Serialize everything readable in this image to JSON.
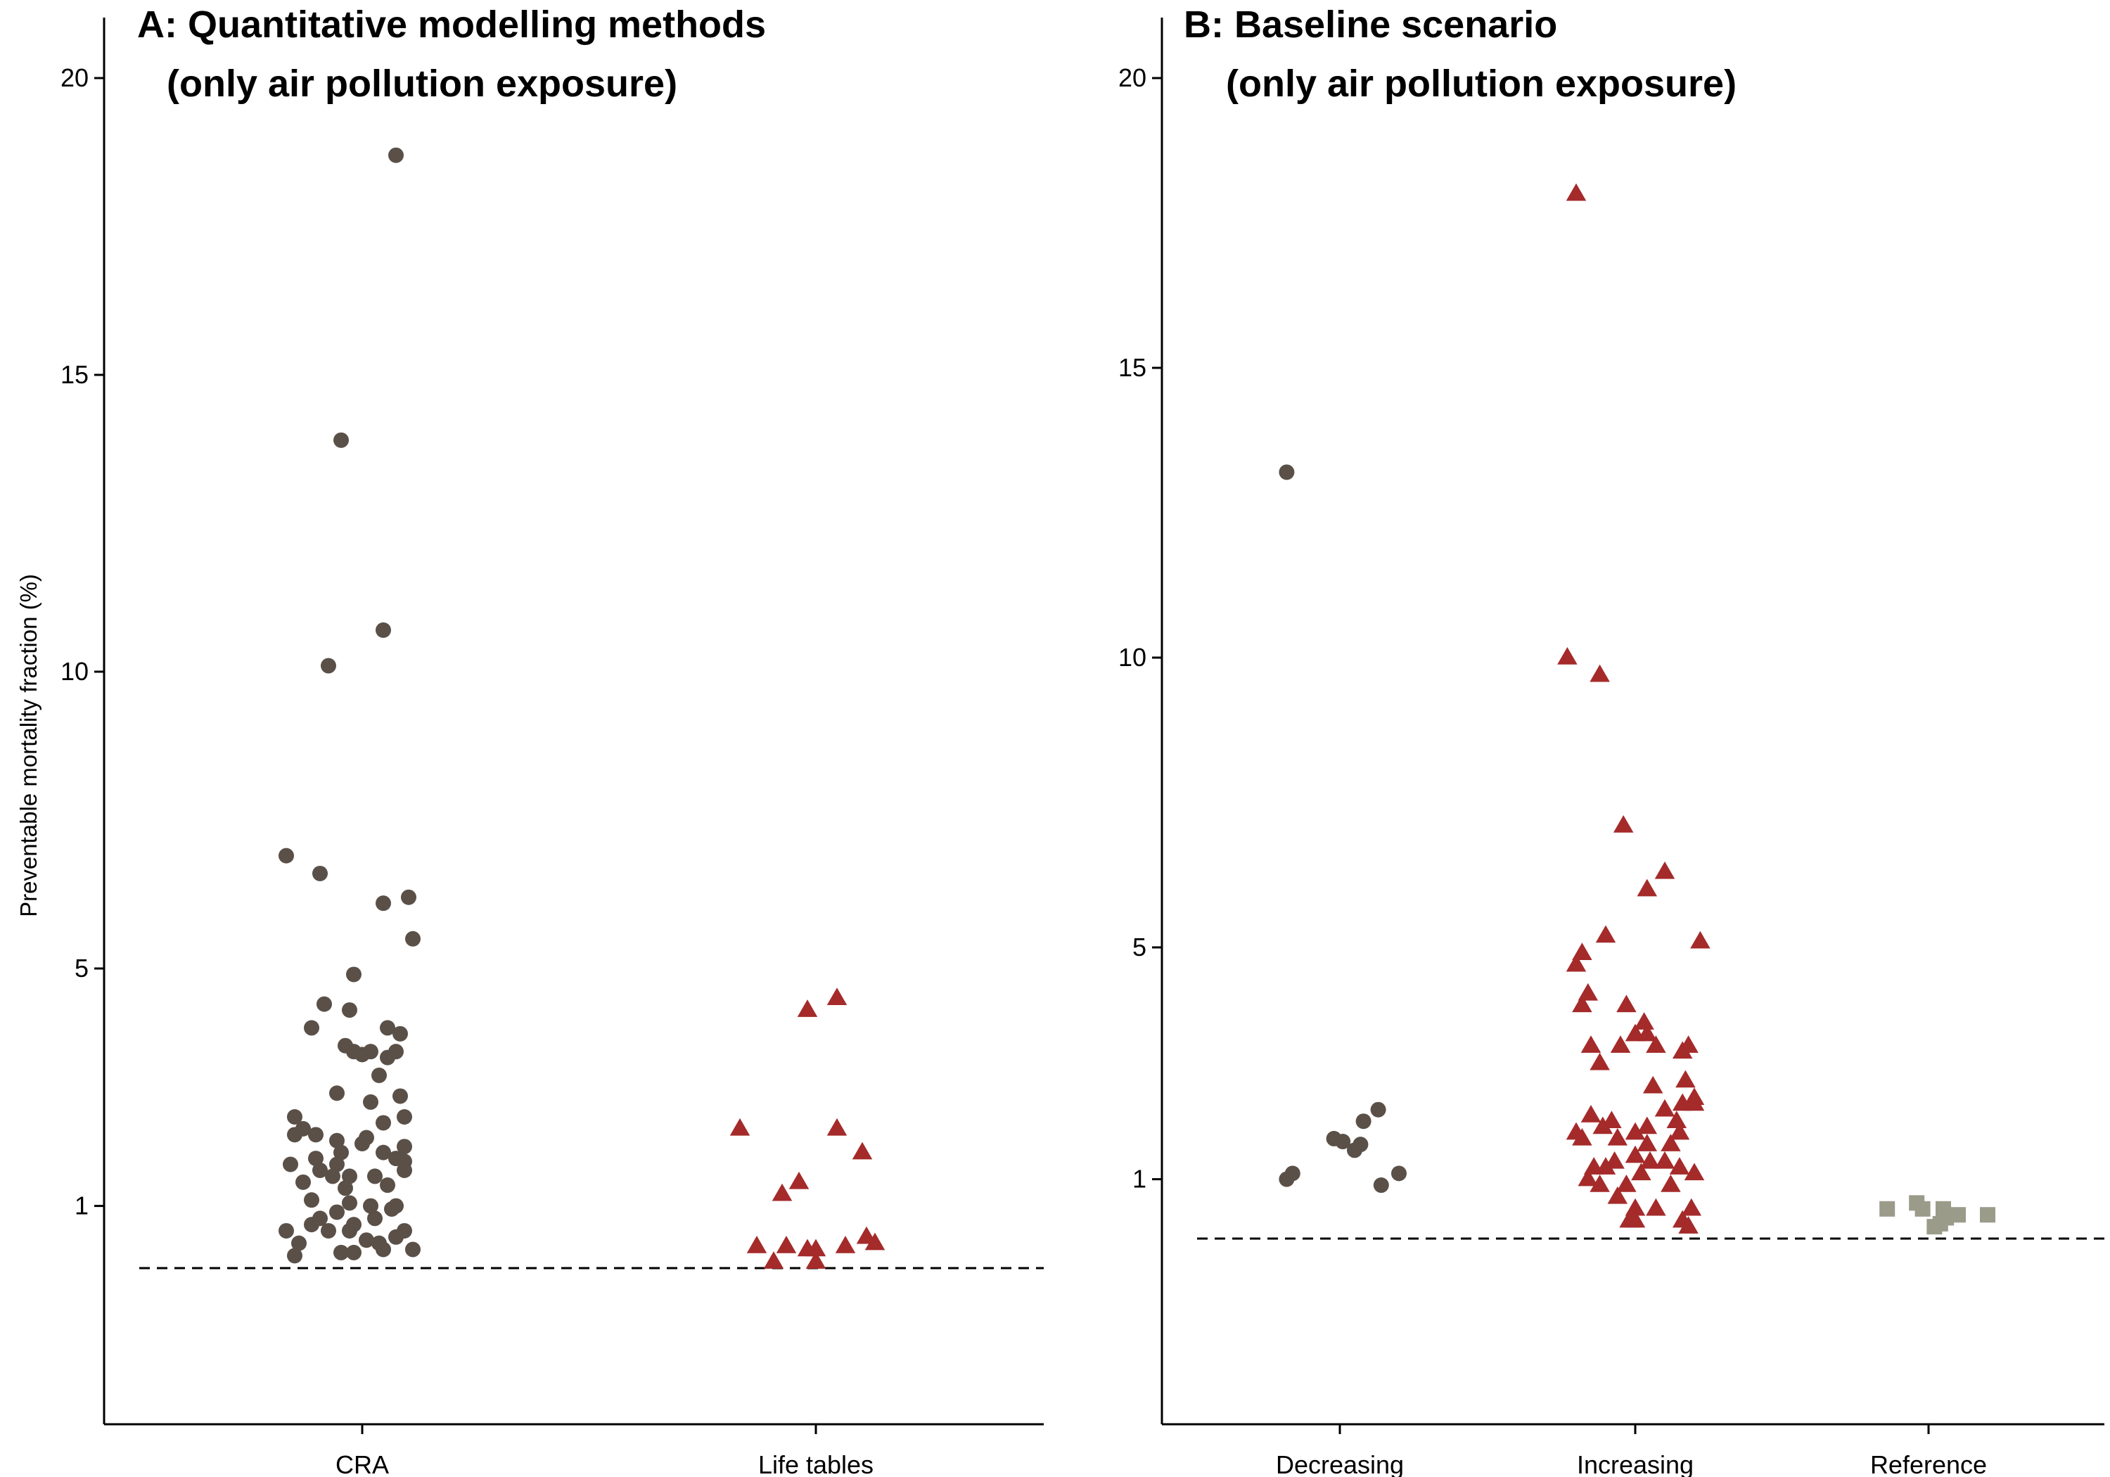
{
  "y_axis_title": "Preventable mortality fraction (%)",
  "chart_data": [
    {
      "type": "scatter",
      "title": "A: Quantitative modelling methods",
      "subtitle": "(only air pollution exposure)",
      "xlabel": "",
      "ylabel": "Preventable mortality fraction (%)",
      "ylim": [
        -2.8,
        21
      ],
      "y_ticks": [
        1,
        5,
        10,
        15,
        20
      ],
      "reference_line_y": 0.0,
      "categories": [
        "CRA",
        "Life tables"
      ],
      "colors": {
        "CRA": "#5a5048",
        "Life tables": "#a52a2a"
      },
      "markers": {
        "CRA": "circle",
        "Life tables": "triangle"
      },
      "legend": "none",
      "grid": false,
      "series": [
        {
          "category": "CRA",
          "points": [
            [
              -0.18,
              6.9
            ],
            [
              0.08,
              18.7
            ],
            [
              -0.05,
              13.9
            ],
            [
              0.05,
              10.7
            ],
            [
              -0.08,
              10.1
            ],
            [
              -0.1,
              6.6
            ],
            [
              0.05,
              6.1
            ],
            [
              0.11,
              6.2
            ],
            [
              0.12,
              5.5
            ],
            [
              -0.02,
              4.9
            ],
            [
              -0.09,
              4.4
            ],
            [
              -0.03,
              4.3
            ],
            [
              -0.12,
              4.0
            ],
            [
              0.06,
              4.0
            ],
            [
              0.09,
              3.9
            ],
            [
              -0.04,
              3.7
            ],
            [
              -0.02,
              3.6
            ],
            [
              0.0,
              3.55
            ],
            [
              0.02,
              3.6
            ],
            [
              0.08,
              3.6
            ],
            [
              0.06,
              3.5
            ],
            [
              0.04,
              3.2
            ],
            [
              -0.06,
              2.9
            ],
            [
              0.09,
              2.85
            ],
            [
              0.02,
              2.75
            ],
            [
              0.05,
              2.4
            ],
            [
              -0.16,
              2.5
            ],
            [
              0.1,
              2.5
            ],
            [
              -0.14,
              2.3
            ],
            [
              -0.11,
              2.2
            ],
            [
              -0.16,
              2.2
            ],
            [
              0.01,
              2.15
            ],
            [
              -0.06,
              2.1
            ],
            [
              0.1,
              2.0
            ],
            [
              0.05,
              1.9
            ],
            [
              0.0,
              2.05
            ],
            [
              -0.05,
              1.9
            ],
            [
              0.08,
              1.8
            ],
            [
              -0.11,
              1.8
            ],
            [
              -0.06,
              1.7
            ],
            [
              -0.03,
              1.5
            ],
            [
              0.03,
              1.5
            ],
            [
              0.1,
              1.6
            ],
            [
              -0.1,
              1.6
            ],
            [
              0.1,
              1.75
            ],
            [
              -0.07,
              1.5
            ],
            [
              -0.17,
              1.7
            ],
            [
              -0.14,
              1.4
            ],
            [
              0.06,
              1.35
            ],
            [
              -0.04,
              1.3
            ],
            [
              0.02,
              1.0
            ],
            [
              -0.03,
              1.05
            ],
            [
              0.08,
              1.0
            ],
            [
              -0.06,
              0.9
            ],
            [
              -0.12,
              1.1
            ],
            [
              0.07,
              0.95
            ],
            [
              0.05,
              0.3
            ],
            [
              -0.1,
              0.8
            ],
            [
              -0.02,
              0.7
            ],
            [
              0.03,
              0.8
            ],
            [
              0.04,
              0.4
            ],
            [
              -0.15,
              0.4
            ],
            [
              -0.05,
              0.25
            ],
            [
              -0.08,
              0.6
            ],
            [
              -0.12,
              0.7
            ],
            [
              -0.18,
              0.6
            ],
            [
              0.1,
              0.6
            ],
            [
              -0.03,
              0.6
            ],
            [
              0.12,
              0.3
            ],
            [
              0.08,
              0.5
            ],
            [
              0.01,
              0.45
            ],
            [
              -0.16,
              0.2
            ],
            [
              -0.02,
              0.25
            ]
          ]
        },
        {
          "category": "Life tables",
          "points": [
            [
              0.05,
              4.5
            ],
            [
              -0.02,
              4.3
            ],
            [
              0.05,
              2.3
            ],
            [
              0.11,
              1.9
            ],
            [
              -0.18,
              2.3
            ],
            [
              -0.04,
              1.4
            ],
            [
              -0.08,
              1.2
            ],
            [
              0.14,
              0.4
            ],
            [
              0.12,
              0.5
            ],
            [
              0.07,
              0.35
            ],
            [
              -0.14,
              0.35
            ],
            [
              -0.02,
              0.3
            ],
            [
              0.0,
              0.3
            ],
            [
              -0.07,
              0.35
            ],
            [
              -0.1,
              0.1
            ],
            [
              0.0,
              0.1
            ]
          ]
        }
      ]
    },
    {
      "type": "scatter",
      "title": "B: Baseline scenario",
      "subtitle": "(only air pollution exposure)",
      "xlabel": "",
      "ylabel": "",
      "ylim": [
        -2.8,
        21
      ],
      "y_ticks": [
        1,
        5,
        10,
        15,
        20
      ],
      "reference_line_y": 0.0,
      "categories": [
        "Decreasing\nGHG emission",
        "Increasing\nGHG emission",
        "Reference\nyear"
      ],
      "colors": {
        "Decreasing\nGHG emission": "#5a5048",
        "Increasing\nGHG emission": "#a52a2a",
        "Reference\nyear": "#9b9b8a"
      },
      "markers": {
        "Decreasing\nGHG emission": "circle",
        "Increasing\nGHG emission": "triangle",
        "Reference\nyear": "square"
      },
      "legend": "none",
      "grid": false,
      "series": [
        {
          "category": "Decreasing\nGHG emission",
          "points": [
            [
              -0.18,
              13.2
            ],
            [
              0.13,
              2.2
            ],
            [
              0.08,
              2.0
            ],
            [
              -0.02,
              1.7
            ],
            [
              0.01,
              1.65
            ],
            [
              0.07,
              1.6
            ],
            [
              0.05,
              1.5
            ],
            [
              -0.18,
              1.0
            ],
            [
              -0.16,
              1.1
            ],
            [
              0.2,
              1.1
            ],
            [
              0.14,
              0.9
            ]
          ]
        },
        {
          "category": "Increasing\nGHG emission",
          "points": [
            [
              -0.2,
              18.0
            ],
            [
              -0.23,
              10.0
            ],
            [
              -0.12,
              9.7
            ],
            [
              -0.04,
              7.1
            ],
            [
              0.1,
              6.3
            ],
            [
              -0.1,
              5.2
            ],
            [
              0.22,
              5.1
            ],
            [
              0.04,
              6.0
            ],
            [
              -0.18,
              4.9
            ],
            [
              -0.18,
              4.0
            ],
            [
              0.0,
              3.5
            ],
            [
              -0.03,
              4.0
            ],
            [
              -0.05,
              3.3
            ],
            [
              0.04,
              3.5
            ],
            [
              -0.15,
              3.3
            ],
            [
              0.03,
              3.7
            ],
            [
              0.07,
              3.3
            ],
            [
              -0.2,
              4.7
            ],
            [
              -0.16,
              4.2
            ],
            [
              -0.12,
              3.0
            ],
            [
              0.18,
              3.3
            ],
            [
              0.16,
              3.2
            ],
            [
              0.17,
              2.7
            ],
            [
              0.2,
              2.4
            ],
            [
              0.2,
              2.3
            ],
            [
              0.06,
              2.6
            ],
            [
              0.1,
              2.2
            ],
            [
              -0.08,
              2.0
            ],
            [
              -0.11,
              1.9
            ],
            [
              0.04,
              1.9
            ],
            [
              0.16,
              2.3
            ],
            [
              0.14,
              2.0
            ],
            [
              0.12,
              1.6
            ],
            [
              -0.06,
              1.7
            ],
            [
              0.0,
              1.8
            ],
            [
              -0.2,
              1.8
            ],
            [
              -0.15,
              2.1
            ],
            [
              -0.18,
              1.7
            ],
            [
              0.04,
              1.6
            ],
            [
              0.1,
              1.3
            ],
            [
              0.15,
              1.8
            ],
            [
              -0.07,
              1.3
            ],
            [
              0.0,
              1.4
            ],
            [
              0.05,
              1.3
            ],
            [
              0.15,
              1.2
            ],
            [
              0.2,
              1.1
            ],
            [
              -0.1,
              1.2
            ],
            [
              0.02,
              1.1
            ],
            [
              -0.16,
              1.0
            ],
            [
              -0.14,
              1.2
            ],
            [
              -0.12,
              0.9
            ],
            [
              -0.03,
              0.9
            ],
            [
              0.12,
              0.9
            ],
            [
              0.07,
              0.5
            ],
            [
              0.0,
              0.5
            ],
            [
              0.0,
              0.3
            ],
            [
              -0.02,
              0.3
            ],
            [
              0.16,
              0.3
            ],
            [
              0.19,
              0.5
            ],
            [
              0.18,
              0.2
            ],
            [
              -0.06,
              0.7
            ]
          ]
        },
        {
          "category": "Reference\nyear",
          "points": [
            [
              -0.04,
              0.6
            ],
            [
              0.1,
              0.4
            ],
            [
              0.05,
              0.5
            ],
            [
              -0.14,
              0.5
            ],
            [
              -0.02,
              0.5
            ],
            [
              0.04,
              0.25
            ],
            [
              0.02,
              0.2
            ],
            [
              0.06,
              0.35
            ],
            [
              0.2,
              0.4
            ]
          ]
        }
      ]
    }
  ]
}
